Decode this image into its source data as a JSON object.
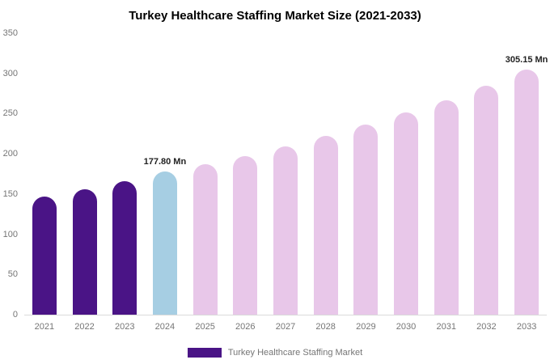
{
  "chart_data": {
    "type": "bar",
    "title": "Turkey Healthcare Staffing Market Size (2021-2033)",
    "xlabel": "",
    "ylabel": "",
    "unit": "Mn",
    "categories": [
      "2021",
      "2022",
      "2023",
      "2024",
      "2025",
      "2026",
      "2027",
      "2028",
      "2029",
      "2030",
      "2031",
      "2032",
      "2033"
    ],
    "values": [
      147,
      156,
      166,
      177.8,
      187,
      197,
      209,
      222,
      236,
      251,
      267,
      285,
      305.15
    ],
    "ylim": [
      0,
      350
    ],
    "yticks": [
      0,
      50,
      100,
      150,
      200,
      250,
      300,
      350
    ],
    "grid": false,
    "bar_roles": [
      "historical",
      "historical",
      "historical",
      "highlight",
      "forecast",
      "forecast",
      "forecast",
      "forecast",
      "forecast",
      "forecast",
      "forecast",
      "forecast",
      "forecast"
    ],
    "colors": {
      "historical": "#4a1486",
      "highlight": "#a6cee3",
      "forecast": "#e8c7e9"
    },
    "annotations": [
      {
        "index": 3,
        "category": "2024",
        "text": "177.80 Mn"
      },
      {
        "index": 12,
        "category": "2033",
        "text": "305.15 Mn"
      }
    ],
    "legend": {
      "position": "bottom",
      "items": [
        {
          "label": "Turkey Healthcare Staffing Market",
          "color": "#4a1486"
        }
      ]
    }
  }
}
